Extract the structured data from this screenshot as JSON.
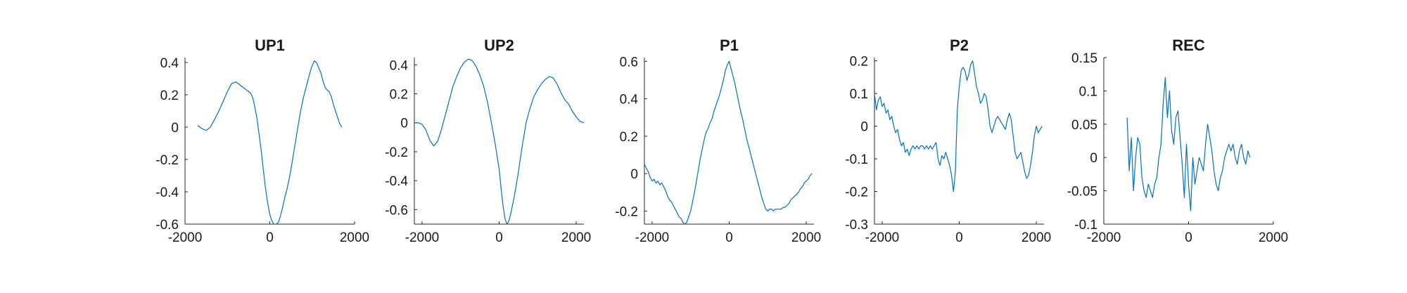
{
  "figure": {
    "background": "#ffffff",
    "line_color": "#0072bd"
  },
  "chart_data": [
    {
      "type": "line",
      "title": "UP1",
      "xlim": [
        -2000,
        2000
      ],
      "ylim": [
        -0.6,
        0.43
      ],
      "xticks": [
        -2000,
        0,
        2000
      ],
      "xtick_labels": [
        "-2000",
        "0",
        "2000"
      ],
      "yticks": [
        -0.6,
        -0.4,
        -0.2,
        0,
        0.2,
        0.4
      ],
      "ytick_labels": [
        "-0.6",
        "-0.4",
        "-0.2",
        "0",
        "0.2",
        "0.4"
      ],
      "grid": false,
      "series": [
        {
          "x": [
            -1700,
            -1600,
            -1500,
            -1400,
            -1300,
            -1200,
            -1100,
            -1000,
            -900,
            -800,
            -700,
            -600,
            -500,
            -450,
            -400,
            -350,
            -300,
            -250,
            -200,
            -150,
            -100,
            -50,
            0,
            50,
            100,
            150,
            200,
            250,
            300,
            350,
            400,
            450,
            500,
            550,
            600,
            650,
            700,
            750,
            800,
            850,
            900,
            950,
            1000,
            1050,
            1100,
            1150,
            1200,
            1250,
            1300,
            1350,
            1400,
            1450,
            1500,
            1550,
            1600,
            1650,
            1700
          ],
          "y": [
            0.01,
            -0.01,
            -0.02,
            0.0,
            0.05,
            0.1,
            0.16,
            0.22,
            0.27,
            0.28,
            0.26,
            0.24,
            0.22,
            0.21,
            0.18,
            0.12,
            0.05,
            -0.05,
            -0.15,
            -0.27,
            -0.38,
            -0.47,
            -0.54,
            -0.58,
            -0.6,
            -0.6,
            -0.59,
            -0.55,
            -0.5,
            -0.44,
            -0.39,
            -0.33,
            -0.26,
            -0.18,
            -0.1,
            -0.02,
            0.06,
            0.13,
            0.19,
            0.24,
            0.29,
            0.34,
            0.38,
            0.41,
            0.4,
            0.37,
            0.34,
            0.29,
            0.25,
            0.23,
            0.22,
            0.19,
            0.14,
            0.1,
            0.06,
            0.02,
            0.0
          ]
        }
      ]
    },
    {
      "type": "line",
      "title": "UP2",
      "xlim": [
        -2200,
        2200
      ],
      "ylim": [
        -0.7,
        0.45
      ],
      "xticks": [
        -2000,
        0,
        2000
      ],
      "xtick_labels": [
        "-2000",
        "0",
        "2000"
      ],
      "yticks": [
        -0.6,
        -0.4,
        -0.2,
        0,
        0.2,
        0.4
      ],
      "ytick_labels": [
        "-0.6",
        "-0.4",
        "-0.2",
        "0",
        "0.2",
        "0.4"
      ],
      "grid": false,
      "series": [
        {
          "x": [
            -2200,
            -2100,
            -2000,
            -1900,
            -1800,
            -1700,
            -1600,
            -1500,
            -1400,
            -1300,
            -1200,
            -1100,
            -1000,
            -900,
            -800,
            -700,
            -600,
            -500,
            -400,
            -300,
            -200,
            -100,
            0,
            50,
            100,
            150,
            200,
            250,
            300,
            400,
            500,
            600,
            700,
            800,
            900,
            1000,
            1100,
            1200,
            1300,
            1400,
            1500,
            1600,
            1700,
            1800,
            1900,
            2000,
            2100,
            2200
          ],
          "y": [
            0.0,
            0.0,
            -0.01,
            -0.05,
            -0.12,
            -0.16,
            -0.13,
            -0.05,
            0.05,
            0.15,
            0.25,
            0.32,
            0.38,
            0.42,
            0.44,
            0.43,
            0.39,
            0.33,
            0.25,
            0.14,
            0.0,
            -0.15,
            -0.32,
            -0.45,
            -0.57,
            -0.66,
            -0.7,
            -0.68,
            -0.63,
            -0.5,
            -0.34,
            -0.16,
            0.0,
            0.1,
            0.18,
            0.23,
            0.27,
            0.3,
            0.32,
            0.31,
            0.27,
            0.21,
            0.16,
            0.13,
            0.08,
            0.04,
            0.01,
            0.0
          ]
        }
      ]
    },
    {
      "type": "line",
      "title": "P1",
      "xlim": [
        -2200,
        2200
      ],
      "ylim": [
        -0.27,
        0.62
      ],
      "xticks": [
        -2000,
        0,
        2000
      ],
      "xtick_labels": [
        "-2000",
        "0",
        "2000"
      ],
      "yticks": [
        -0.2,
        0,
        0.2,
        0.4,
        0.6
      ],
      "ytick_labels": [
        "-0.2",
        "0",
        "0.2",
        "0.4",
        "0.6"
      ],
      "grid": false,
      "series": [
        {
          "x": [
            -2200,
            -2150,
            -2100,
            -2050,
            -2000,
            -1950,
            -1900,
            -1850,
            -1800,
            -1750,
            -1700,
            -1650,
            -1600,
            -1550,
            -1500,
            -1450,
            -1400,
            -1350,
            -1300,
            -1250,
            -1200,
            -1150,
            -1100,
            -1050,
            -1000,
            -950,
            -900,
            -850,
            -800,
            -750,
            -700,
            -650,
            -600,
            -550,
            -500,
            -450,
            -400,
            -350,
            -300,
            -250,
            -200,
            -150,
            -100,
            -50,
            0,
            50,
            100,
            150,
            200,
            250,
            300,
            350,
            400,
            450,
            500,
            550,
            600,
            650,
            700,
            750,
            800,
            850,
            900,
            950,
            1000,
            1050,
            1100,
            1150,
            1200,
            1250,
            1300,
            1350,
            1400,
            1450,
            1500,
            1550,
            1600,
            1650,
            1700,
            1750,
            1800,
            1850,
            1900,
            1950,
            2000,
            2050,
            2100,
            2150
          ],
          "y": [
            0.05,
            0.03,
            0.01,
            -0.02,
            -0.04,
            -0.03,
            -0.05,
            -0.04,
            -0.06,
            -0.05,
            -0.07,
            -0.09,
            -0.12,
            -0.14,
            -0.15,
            -0.17,
            -0.19,
            -0.21,
            -0.23,
            -0.24,
            -0.26,
            -0.27,
            -0.26,
            -0.23,
            -0.2,
            -0.15,
            -0.1,
            -0.04,
            0.02,
            0.08,
            0.13,
            0.18,
            0.22,
            0.24,
            0.27,
            0.29,
            0.33,
            0.36,
            0.39,
            0.42,
            0.46,
            0.5,
            0.55,
            0.58,
            0.6,
            0.56,
            0.52,
            0.48,
            0.43,
            0.38,
            0.33,
            0.29,
            0.24,
            0.19,
            0.15,
            0.11,
            0.07,
            0.03,
            -0.01,
            -0.05,
            -0.09,
            -0.13,
            -0.16,
            -0.19,
            -0.2,
            -0.19,
            -0.19,
            -0.2,
            -0.19,
            -0.19,
            -0.19,
            -0.19,
            -0.18,
            -0.18,
            -0.17,
            -0.16,
            -0.14,
            -0.13,
            -0.12,
            -0.11,
            -0.1,
            -0.08,
            -0.07,
            -0.05,
            -0.04,
            -0.03,
            -0.01,
            0.0
          ]
        }
      ]
    },
    {
      "type": "line",
      "title": "P2",
      "xlim": [
        -2200,
        2200
      ],
      "ylim": [
        -0.3,
        0.21
      ],
      "xticks": [
        -2000,
        0,
        2000
      ],
      "xtick_labels": [
        "-2000",
        "0",
        "2000"
      ],
      "yticks": [
        -0.3,
        -0.2,
        -0.1,
        0,
        0.1,
        0.2
      ],
      "ytick_labels": [
        "-0.3",
        "-0.2",
        "-0.1",
        "0",
        "0.1",
        "0.2"
      ],
      "grid": false,
      "series": [
        {
          "x": [
            -2200,
            -2150,
            -2100,
            -2050,
            -2000,
            -1950,
            -1900,
            -1850,
            -1800,
            -1750,
            -1700,
            -1650,
            -1600,
            -1550,
            -1500,
            -1450,
            -1400,
            -1350,
            -1300,
            -1250,
            -1200,
            -1150,
            -1100,
            -1050,
            -1000,
            -950,
            -900,
            -850,
            -800,
            -750,
            -700,
            -650,
            -600,
            -550,
            -500,
            -450,
            -400,
            -350,
            -300,
            -250,
            -200,
            -150,
            -100,
            -50,
            0,
            50,
            100,
            150,
            200,
            250,
            300,
            350,
            400,
            450,
            500,
            550,
            600,
            650,
            700,
            750,
            800,
            850,
            900,
            950,
            1000,
            1050,
            1100,
            1150,
            1200,
            1250,
            1300,
            1350,
            1400,
            1450,
            1500,
            1550,
            1600,
            1650,
            1700,
            1750,
            1800,
            1850,
            1900,
            1950,
            2000,
            2050,
            2100,
            2150
          ],
          "y": [
            0.1,
            0.05,
            0.08,
            0.09,
            0.06,
            0.07,
            0.04,
            0.05,
            0.02,
            0.03,
            0.0,
            -0.02,
            -0.01,
            -0.04,
            -0.06,
            -0.05,
            -0.08,
            -0.07,
            -0.09,
            -0.07,
            -0.06,
            -0.07,
            -0.06,
            -0.07,
            -0.06,
            -0.06,
            -0.07,
            -0.06,
            -0.07,
            -0.06,
            -0.07,
            -0.06,
            -0.05,
            -0.1,
            -0.12,
            -0.09,
            -0.1,
            -0.08,
            -0.1,
            -0.12,
            -0.15,
            -0.2,
            -0.14,
            0.05,
            0.12,
            0.17,
            0.18,
            0.17,
            0.14,
            0.16,
            0.19,
            0.2,
            0.16,
            0.12,
            0.1,
            0.07,
            0.08,
            0.1,
            0.09,
            0.05,
            0.0,
            -0.02,
            0.0,
            0.02,
            0.03,
            0.02,
            0.01,
            0.0,
            -0.01,
            0.02,
            0.04,
            0.02,
            -0.03,
            -0.08,
            -0.1,
            -0.09,
            -0.08,
            -0.11,
            -0.14,
            -0.16,
            -0.15,
            -0.12,
            -0.08,
            -0.03,
            0.0,
            -0.02,
            -0.01,
            0.0
          ]
        }
      ]
    },
    {
      "type": "line",
      "title": "REC",
      "xlim": [
        -2000,
        2000
      ],
      "ylim": [
        -0.1,
        0.15
      ],
      "xticks": [
        -2000,
        0,
        2000
      ],
      "xtick_labels": [
        "-2000",
        "0",
        "2000"
      ],
      "yticks": [
        -0.1,
        -0.05,
        0,
        0.05,
        0.1,
        0.15
      ],
      "ytick_labels": [
        "-0.1",
        "-0.05",
        "0",
        "0.05",
        "0.1",
        "0.15"
      ],
      "grid": false,
      "series": [
        {
          "x": [
            -1450,
            -1400,
            -1350,
            -1300,
            -1250,
            -1200,
            -1150,
            -1100,
            -1050,
            -1000,
            -950,
            -900,
            -850,
            -800,
            -750,
            -700,
            -650,
            -600,
            -550,
            -500,
            -450,
            -400,
            -350,
            -300,
            -250,
            -200,
            -150,
            -100,
            -50,
            0,
            50,
            100,
            150,
            200,
            250,
            300,
            350,
            400,
            450,
            500,
            550,
            600,
            650,
            700,
            750,
            800,
            850,
            900,
            950,
            1000,
            1050,
            1100,
            1150,
            1200,
            1250,
            1300,
            1350,
            1400,
            1450
          ],
          "y": [
            0.06,
            -0.02,
            0.03,
            -0.05,
            0.0,
            0.03,
            0.02,
            -0.03,
            -0.05,
            -0.06,
            -0.04,
            -0.05,
            -0.06,
            -0.04,
            -0.03,
            0.0,
            0.02,
            0.08,
            0.12,
            0.06,
            0.1,
            0.04,
            0.02,
            0.06,
            0.07,
            0.03,
            -0.01,
            -0.06,
            0.02,
            -0.04,
            -0.08,
            0.0,
            -0.04,
            -0.02,
            0.0,
            -0.01,
            -0.02,
            0.02,
            0.05,
            0.03,
            0.01,
            -0.02,
            -0.04,
            -0.05,
            -0.03,
            -0.02,
            0.0,
            0.01,
            0.02,
            0.01,
            0.02,
            0.0,
            -0.01,
            0.01,
            0.02,
            0.0,
            -0.01,
            0.01,
            0.0
          ]
        }
      ]
    }
  ]
}
